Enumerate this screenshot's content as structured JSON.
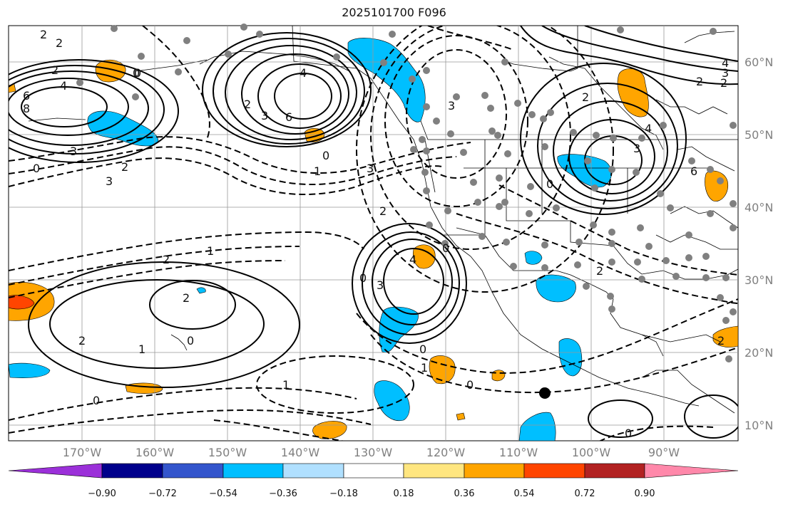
{
  "title": "2025101700 F096",
  "map": {
    "lon_labels": [
      "170°W",
      "160°W",
      "150°W",
      "140°W",
      "130°W",
      "120°W",
      "110°W",
      "100°W",
      "90°W"
    ],
    "lat_labels": [
      "60°N",
      "50°N",
      "40°N",
      "30°N",
      "20°N",
      "10°N"
    ],
    "contour_labels": [
      "2",
      "2",
      "4",
      "6",
      "8",
      "3",
      "2",
      "3",
      "0",
      "2",
      "0",
      "4",
      "6",
      "3",
      "2",
      "1",
      "0",
      "3",
      "2",
      "1",
      "1",
      "2",
      "3",
      "4",
      "0",
      "3",
      "2",
      "2",
      "1",
      "0",
      "2",
      "0",
      "1",
      "0",
      "3",
      "2",
      "4",
      "4",
      "2",
      "6",
      "0",
      "2",
      "3",
      "0",
      "2",
      "0",
      "0",
      "0"
    ],
    "station_marker": "black-dot"
  },
  "colorbar": {
    "colors": [
      "#9b30d9",
      "#00008b",
      "#3355cc",
      "#00bfff",
      "#b0e0ff",
      "#ffffff",
      "#ffe680",
      "#ffa500",
      "#ff4500",
      "#b22222",
      "#ff88aa"
    ],
    "labels": [
      "−0.90",
      "−0.72",
      "−0.54",
      "−0.36",
      "−0.18",
      "0.18",
      "0.36",
      "0.54",
      "0.72",
      "0.90"
    ]
  },
  "colors": {
    "positive_fill": "#ffa500",
    "negative_fill": "#00bfff",
    "strong_positive_fill": "#ff4500",
    "dots": "#808080",
    "contours": "#000000",
    "grid": "#999999"
  }
}
